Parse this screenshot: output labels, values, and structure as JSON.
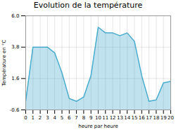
{
  "chart_data": {
    "type": "area",
    "title": "Evolution de la température",
    "xlabel": "heure par heure",
    "ylabel": "Température en °C",
    "color": "#4aaccf",
    "x": [
      0,
      1,
      2,
      3,
      4,
      5,
      6,
      7,
      8,
      9,
      10,
      11,
      12,
      13,
      14,
      15,
      16,
      17,
      18,
      19,
      20
    ],
    "values": [
      0.0,
      3.8,
      3.8,
      3.8,
      3.4,
      2.0,
      0.2,
      0.0,
      0.3,
      1.8,
      5.2,
      4.8,
      4.8,
      4.6,
      4.8,
      4.2,
      1.8,
      0.0,
      0.1,
      1.3,
      1.4
    ],
    "xlim": [
      0,
      20
    ],
    "ylim": [
      -0.6,
      6.0
    ],
    "xticks": [
      0,
      1,
      2,
      3,
      4,
      5,
      6,
      7,
      8,
      9,
      10,
      11,
      12,
      13,
      14,
      15,
      16,
      17,
      18,
      19,
      20
    ],
    "yticks": [
      -0.6,
      1.6,
      3.8,
      {
        "value": 6.0,
        "label": "6.0"
      }
    ],
    "grid": true
  }
}
